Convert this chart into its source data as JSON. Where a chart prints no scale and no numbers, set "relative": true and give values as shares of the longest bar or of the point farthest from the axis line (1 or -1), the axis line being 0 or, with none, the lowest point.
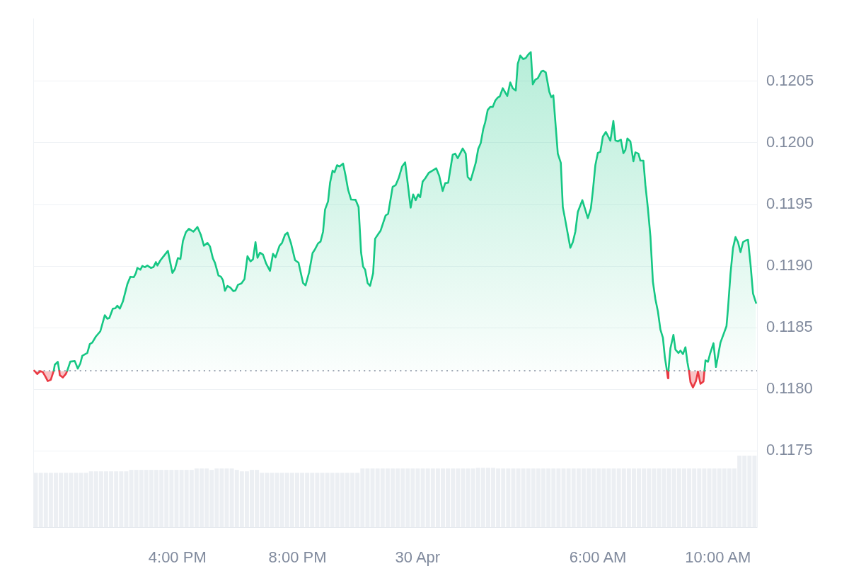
{
  "chart_data": [
    {
      "type": "area",
      "x": [
        "--04-29T11:14",
        "--04-29T11:20",
        "--04-29T11:26",
        "--04-29T11:31",
        "--04-29T11:36",
        "--04-29T11:41",
        "--04-29T11:47",
        "--04-29T11:53",
        "--04-29T11:55",
        "--04-29T12:01",
        "--04-29T12:04",
        "--04-29T12:05",
        "--04-29T12:11",
        "--04-29T12:17",
        "--04-29T12:20",
        "--04-29T12:26",
        "--04-29T12:35",
        "--04-29T12:41",
        "--04-29T12:46",
        "--04-29T12:50",
        "--04-29T13:00",
        "--04-29T13:05",
        "--04-29T13:10",
        "--04-29T13:17",
        "--04-29T13:26",
        "--04-29T13:35",
        "--04-29T13:40",
        "--04-29T13:44",
        "--04-29T13:51",
        "--04-29T13:56",
        "--04-29T14:00",
        "--04-29T14:05",
        "--04-29T14:11",
        "--04-29T14:20",
        "--04-29T14:26",
        "--04-29T14:33",
        "--04-29T14:37",
        "--04-29T14:40",
        "--04-29T14:46",
        "--04-29T14:50",
        "--04-29T14:55",
        "--04-29T15:00",
        "--04-29T15:07",
        "--04-29T15:12",
        "--04-29T15:17",
        "--04-29T15:20",
        "--04-29T15:26",
        "--04-29T15:35",
        "--04-29T15:41",
        "--04-29T15:50",
        "--04-29T15:55",
        "--04-29T16:01",
        "--04-29T16:06",
        "--04-29T16:11",
        "--04-29T16:17",
        "--04-29T16:23",
        "--04-29T16:32",
        "--04-29T16:40",
        "--04-29T16:47",
        "--04-29T16:53",
        "--04-29T17:00",
        "--04-29T17:05",
        "--04-29T17:11",
        "--04-29T17:15",
        "--04-29T17:22",
        "--04-29T17:27",
        "--04-29T17:31",
        "--04-29T17:35",
        "--04-29T17:40",
        "--04-29T17:46",
        "--04-29T17:52",
        "--04-29T17:56",
        "--04-29T18:01",
        "--04-29T18:08",
        "--04-29T18:14",
        "--04-29T18:20",
        "--04-29T18:26",
        "--04-29T18:31",
        "--04-29T18:36",
        "--04-29T18:40",
        "--04-29T18:45",
        "--04-29T18:51",
        "--04-29T18:57",
        "--04-29T19:05",
        "--04-29T19:11",
        "--04-29T19:16",
        "--04-29T19:24",
        "--04-29T19:29",
        "--04-29T19:35",
        "--04-29T19:40",
        "--04-29T19:47",
        "--04-29T19:55",
        "--04-29T20:02",
        "--04-29T20:11",
        "--04-29T20:16",
        "--04-29T20:23",
        "--04-29T20:30",
        "--04-29T20:35",
        "--04-29T20:41",
        "--04-29T20:46",
        "--04-29T20:51",
        "--04-29T20:55",
        "--04-29T21:01",
        "--04-29T21:05",
        "--04-29T21:10",
        "--04-29T21:14",
        "--04-29T21:19",
        "--04-29T21:24",
        "--04-29T21:31",
        "--04-29T21:36",
        "--04-29T21:41",
        "--04-29T21:47",
        "--04-29T21:56",
        "--04-29T22:02",
        "--04-29T22:07",
        "--04-29T22:11",
        "--04-29T22:15",
        "--04-29T22:20",
        "--04-29T22:25",
        "--04-29T22:31",
        "--04-29T22:35",
        "--04-29T22:42",
        "--04-29T22:46",
        "--04-29T22:56",
        "--04-29T23:01",
        "--04-29T23:10",
        "--04-29T23:16",
        "--04-29T23:22",
        "--04-29T23:29",
        "--04-29T23:35",
        "--04-29T23:46",
        "--04-29T23:51",
        "--04-29T23:56",
        "--04-30T00:01",
        "--04-30T00:05",
        "--04-30T00:10",
        "--04-30T00:15",
        "--04-30T00:22",
        "--04-30T00:32",
        "--04-30T00:37",
        "--04-30T00:43",
        "--04-30T00:50",
        "--04-30T00:55",
        "--04-30T01:01",
        "--04-30T01:10",
        "--04-30T01:15",
        "--04-30T01:20",
        "--04-30T01:30",
        "--04-30T01:36",
        "--04-30T01:40",
        "--04-30T01:46",
        "--04-30T01:56",
        "--04-30T02:01",
        "--04-30T02:06",
        "--04-30T02:11",
        "--04-30T02:15",
        "--04-30T02:20",
        "--04-30T02:25",
        "--04-30T02:30",
        "--04-30T02:35",
        "--04-30T02:40",
        "--04-30T02:44",
        "--04-30T02:50",
        "--04-30T02:59",
        "--04-30T03:05",
        "--04-30T03:10",
        "--04-30T03:16",
        "--04-30T03:20",
        "--04-30T03:25",
        "--04-30T03:31",
        "--04-30T03:36",
        "--04-30T03:41",
        "--04-30T03:46",
        "--04-30T03:50",
        "--04-30T03:55",
        "--04-30T04:00",
        "--04-30T04:07",
        "--04-30T04:11",
        "--04-30T04:16",
        "--04-30T04:23",
        "--04-30T04:27",
        "--04-30T04:31",
        "--04-30T04:40",
        "--04-30T04:46",
        "--04-30T04:50",
        "--04-30T04:54",
        "--04-30T05:05",
        "--04-30T05:10",
        "--04-30T05:15",
        "--04-30T05:20",
        "--04-30T05:29",
        "--04-30T05:40",
        "--04-30T05:46",
        "--04-30T05:50",
        "--04-30T05:55",
        "--04-30T06:00",
        "--04-30T06:05",
        "--04-30T06:10",
        "--04-30T06:16",
        "--04-30T06:25",
        "--04-30T06:31",
        "--04-30T06:35",
        "--04-30T06:40",
        "--04-30T06:46",
        "--04-30T06:51",
        "--04-30T06:55",
        "--04-30T06:59",
        "--04-30T07:05",
        "--04-30T07:11",
        "--04-30T07:15",
        "--04-30T07:21",
        "--04-30T07:25",
        "--04-30T07:31",
        "--04-30T07:35",
        "--04-30T07:40",
        "--04-30T07:45",
        "--04-30T07:50",
        "--04-30T07:55",
        "--04-30T08:00",
        "--04-30T08:05",
        "--04-30T08:10",
        "--04-30T08:14",
        "--04-30T08:18",
        "--04-30T08:20",
        "--04-30T08:21",
        "--04-30T08:25",
        "--04-30T08:31",
        "--04-30T08:35",
        "--04-30T08:41",
        "--04-30T08:45",
        "--04-30T08:50",
        "--04-30T08:55",
        "--04-30T08:59",
        "--04-30T09:02",
        "--04-30T09:05",
        "--04-30T09:10",
        "--04-30T09:16",
        "--04-30T09:20",
        "--04-30T09:25",
        "--04-30T09:31",
        "--04-30T09:33",
        "--04-30T09:35",
        "--04-30T09:40",
        "--04-30T09:44",
        "--04-30T09:51",
        "--04-30T09:56",
        "--04-30T10:05",
        "--04-30T10:11",
        "--04-30T10:17",
        "--04-30T10:20",
        "--04-30T10:25",
        "--04-30T10:30",
        "--04-30T10:35",
        "--04-30T10:40",
        "--04-30T10:45",
        "--04-30T10:50",
        "--04-30T10:55",
        "--04-30T11:00",
        "--04-30T11:05",
        "--04-30T11:10",
        "--04-30T11:16"
      ],
      "xlim": [
        "--04-29T11:12",
        "--04-30T11:18"
      ],
      "xticks": [
        {
          "value": "--04-29T16:00",
          "label": "4:00 PM"
        },
        {
          "value": "--04-29T20:00",
          "label": "8:00 PM"
        },
        {
          "value": "--04-30",
          "label": "30 Apr"
        },
        {
          "value": "--04-30T06:00",
          "label": "6:00 AM"
        },
        {
          "value": "--04-30T10:00",
          "label": "10:00 AM"
        }
      ],
      "ylim": [
        0.11688,
        0.12101
      ],
      "yticks": [
        0.1175,
        {
          "value": 0.118,
          "label": "0.1180"
        },
        0.1185,
        {
          "value": 0.119,
          "label": "0.1190"
        },
        0.1195,
        {
          "value": 0.12,
          "label": "0.1200"
        },
        0.1205
      ],
      "grid": "y",
      "ref_lines": [
        {
          "axis": "y",
          "value": 0.11815,
          "line_style": "dotted",
          "color": "#a0a6b5"
        }
      ],
      "series": [
        {
          "color": "#16c784",
          "values": [
            0.11815,
            0.118123,
            0.118147,
            0.118139,
            0.118105,
            0.118066,
            0.118076,
            0.11815,
            0.118199,
            0.118222,
            0.11815,
            0.118114,
            0.118095,
            0.118123,
            0.11815,
            0.118224,
            0.118228,
            0.118167,
            0.118209,
            0.118271,
            0.118294,
            0.118366,
            0.118379,
            0.118427,
            0.11847,
            0.118601,
            0.118572,
            0.118578,
            0.118654,
            0.118657,
            0.118678,
            0.118654,
            0.118711,
            0.118853,
            0.118913,
            0.11891,
            0.118942,
            0.118985,
            0.11897,
            0.119001,
            0.118991,
            0.119004,
            0.118985,
            0.118991,
            0.119032,
            0.119004,
            0.119046,
            0.119093,
            0.119123,
            0.118944,
            0.118976,
            0.119065,
            0.119057,
            0.119203,
            0.119275,
            0.119303,
            0.119279,
            0.119317,
            0.119251,
            0.119165,
            0.119188,
            0.11916,
            0.119061,
            0.119027,
            0.118923,
            0.118913,
            0.118885,
            0.118799,
            0.118839,
            0.118824,
            0.118796,
            0.118802,
            0.118847,
            0.118859,
            0.118894,
            0.11908,
            0.119038,
            0.119055,
            0.119194,
            0.119067,
            0.119109,
            0.119093,
            0.119023,
            0.118961,
            0.119099,
            0.11907,
            0.119165,
            0.119188,
            0.119254,
            0.119271,
            0.119184,
            0.119048,
            0.119027,
            0.118862,
            0.118843,
            0.118947,
            0.119105,
            0.119137,
            0.119184,
            0.119199,
            0.119279,
            0.119459,
            0.119525,
            0.119677,
            0.119775,
            0.119762,
            0.119819,
            0.119809,
            0.119832,
            0.119734,
            0.11962,
            0.11954,
            0.119538,
            0.119478,
            0.119109,
            0.118995,
            0.118972,
            0.118862,
            0.118839,
            0.118942,
            0.119222,
            0.119264,
            0.119288,
            0.119411,
            0.119424,
            0.119643,
            0.119657,
            0.119714,
            0.119809,
            0.119842,
            0.119474,
            0.119582,
            0.119535,
            0.119582,
            0.119559,
            0.119686,
            0.119711,
            0.119756,
            0.119781,
            0.119794,
            0.119734,
            0.11961,
            0.119673,
            0.119677,
            0.119904,
            0.119913,
            0.119876,
            0.119955,
            0.119913,
            0.119724,
            0.119696,
            0.119838,
            0.119951,
            0.119998,
            0.120112,
            0.120169,
            0.120268,
            0.120292,
            0.120292,
            0.120343,
            0.120368,
            0.120377,
            0.120444,
            0.120381,
            0.120491,
            0.120444,
            0.120425,
            0.120643,
            0.120709,
            0.12068,
            0.12069,
            0.120718,
            0.120737,
            0.120476,
            0.120514,
            0.120525,
            0.12058,
            0.120586,
            0.120572,
            0.120415,
            0.120372,
            0.120387,
            0.119913,
            0.119838,
            0.119478,
            0.119393,
            0.119148,
            0.119194,
            0.119279,
            0.11944,
            0.119535,
            0.119389,
            0.119468,
            0.11961,
            0.119819,
            0.119919,
            0.119928,
            0.120052,
            0.120089,
            0.120018,
            0.120178,
            0.120021,
            0.120012,
            0.120027,
            0.119917,
            0.119942,
            0.120036,
            0.120012,
            0.119851,
            0.119923,
            0.119913,
            0.119856,
            0.119856,
            0.119657,
            0.119468,
            0.119241,
            0.118872,
            0.11873,
            0.118631,
            0.118484,
            0.118417,
            0.118256,
            0.11815,
            0.118089,
            0.11815,
            0.118332,
            0.118441,
            0.118322,
            0.118294,
            0.118313,
            0.118285,
            0.118341,
            0.118218,
            0.11815,
            0.118057,
            0.118014,
            0.118066,
            0.118143,
            0.118044,
            0.118063,
            0.11815,
            0.118234,
            0.118222,
            0.118285,
            0.118373,
            0.11818,
            0.118379,
            0.118445,
            0.118512,
            0.118654,
            0.118938,
            0.119146,
            0.119235,
            0.119194,
            0.119112,
            0.119194,
            0.119207,
            0.119213,
            0.119014,
            0.118777,
            0.118701
          ],
          "colors": [
            "#ea3943",
            "#ea3943",
            "#ea3943",
            "#ea3943",
            "#ea3943",
            "#ea3943",
            "#ea3943",
            "#16c784",
            "#16c784",
            "#16c784",
            "#16c784",
            "#ea3943",
            "#ea3943",
            "#ea3943",
            "#16c784",
            "#16c784",
            "#16c784",
            "#16c784",
            "#16c784",
            "#16c784",
            "#16c784",
            "#16c784",
            "#16c784",
            "#16c784",
            "#16c784",
            "#16c784",
            "#16c784",
            "#16c784",
            "#16c784",
            "#16c784",
            "#16c784",
            "#16c784",
            "#16c784",
            "#16c784",
            "#16c784",
            "#16c784",
            "#16c784",
            "#16c784",
            "#16c784",
            "#16c784",
            "#16c784",
            "#16c784",
            "#16c784",
            "#16c784",
            "#16c784",
            "#16c784",
            "#16c784",
            "#16c784",
            "#16c784",
            "#16c784",
            "#16c784",
            "#16c784",
            "#16c784",
            "#16c784",
            "#16c784",
            "#16c784",
            "#16c784",
            "#16c784",
            "#16c784",
            "#16c784",
            "#16c784",
            "#16c784",
            "#16c784",
            "#16c784",
            "#16c784",
            "#16c784",
            "#16c784",
            "#16c784",
            "#16c784",
            "#16c784",
            "#16c784",
            "#16c784",
            "#16c784",
            "#16c784",
            "#16c784",
            "#16c784",
            "#16c784",
            "#16c784",
            "#16c784",
            "#16c784",
            "#16c784",
            "#16c784",
            "#16c784",
            "#16c784",
            "#16c784",
            "#16c784",
            "#16c784",
            "#16c784",
            "#16c784",
            "#16c784",
            "#16c784",
            "#16c784",
            "#16c784",
            "#16c784",
            "#16c784",
            "#16c784",
            "#16c784",
            "#16c784",
            "#16c784",
            "#16c784",
            "#16c784",
            "#16c784",
            "#16c784",
            "#16c784",
            "#16c784",
            "#16c784",
            "#16c784",
            "#16c784",
            "#16c784",
            "#16c784",
            "#16c784",
            "#16c784",
            "#16c784",
            "#16c784",
            "#16c784",
            "#16c784",
            "#16c784",
            "#16c784",
            "#16c784",
            "#16c784",
            "#16c784",
            "#16c784",
            "#16c784",
            "#16c784",
            "#16c784",
            "#16c784",
            "#16c784",
            "#16c784",
            "#16c784",
            "#16c784",
            "#16c784",
            "#16c784",
            "#16c784",
            "#16c784",
            "#16c784",
            "#16c784",
            "#16c784",
            "#16c784",
            "#16c784",
            "#16c784",
            "#16c784",
            "#16c784",
            "#16c784",
            "#16c784",
            "#16c784",
            "#16c784",
            "#16c784",
            "#16c784",
            "#16c784",
            "#16c784",
            "#16c784",
            "#16c784",
            "#16c784",
            "#16c784",
            "#16c784",
            "#16c784",
            "#16c784",
            "#16c784",
            "#16c784",
            "#16c784",
            "#16c784",
            "#16c784",
            "#16c784",
            "#16c784",
            "#16c784",
            "#16c784",
            "#16c784",
            "#16c784",
            "#16c784",
            "#16c784",
            "#16c784",
            "#16c784",
            "#16c784",
            "#16c784",
            "#16c784",
            "#16c784",
            "#16c784",
            "#16c784",
            "#16c784",
            "#16c784",
            "#16c784",
            "#16c784",
            "#16c784",
            "#16c784",
            "#16c784",
            "#16c784",
            "#16c784",
            "#16c784",
            "#16c784",
            "#16c784",
            "#16c784",
            "#16c784",
            "#16c784",
            "#16c784",
            "#16c784",
            "#16c784",
            "#16c784",
            "#16c784",
            "#16c784",
            "#16c784",
            "#16c784",
            "#16c784",
            "#16c784",
            "#16c784",
            "#16c784",
            "#16c784",
            "#16c784",
            "#16c784",
            "#16c784",
            "#16c784",
            "#16c784",
            "#16c784",
            "#16c784",
            "#16c784",
            "#16c784",
            "#16c784",
            "#16c784",
            "#16c784",
            "#16c784",
            "#16c784",
            "#16c784",
            "#16c784",
            "#16c784",
            "#ea3943",
            "#16c784",
            "#16c784",
            "#16c784",
            "#16c784",
            "#16c784",
            "#16c784",
            "#16c784",
            "#16c784",
            "#16c784",
            "#16c784",
            "#ea3943",
            "#ea3943",
            "#ea3943",
            "#ea3943",
            "#ea3943",
            "#ea3943",
            "#16c784",
            "#16c784",
            "#16c784",
            "#16c784",
            "#16c784",
            "#16c784",
            "#16c784",
            "#16c784",
            "#16c784",
            "#16c784",
            "#16c784",
            "#16c784",
            "#16c784",
            "#16c784",
            "#16c784",
            "#16c784",
            "#16c784",
            "#16c784",
            "#16c784",
            "#16c784",
            "#16c784"
          ]
        }
      ]
    },
    {
      "type": "bar",
      "relative": true,
      "color": "#eceff3",
      "categories": [
        null,
        null,
        null,
        null,
        null,
        null,
        null,
        null,
        null,
        null,
        null,
        null,
        null,
        null,
        null,
        null,
        null,
        null,
        null,
        null,
        null,
        null,
        null,
        null,
        null,
        null,
        null,
        null,
        null,
        null,
        null,
        null,
        null,
        null,
        null,
        null,
        null,
        null,
        null,
        null,
        null,
        null,
        null,
        null,
        null,
        null,
        null,
        null,
        null,
        null,
        null,
        null,
        null,
        null,
        null,
        null,
        null,
        null,
        null,
        null,
        null,
        null,
        null,
        null,
        null,
        null,
        null,
        null,
        null,
        null,
        null,
        null,
        null,
        null,
        null,
        null,
        null,
        null,
        null,
        null,
        null,
        null,
        null,
        null,
        null,
        null,
        null,
        null,
        null,
        null,
        null,
        null,
        null,
        null,
        null,
        null,
        null,
        null,
        null,
        null,
        null,
        null,
        null,
        null,
        null,
        null,
        null,
        null,
        null,
        null,
        null,
        null,
        null,
        null,
        null,
        null,
        null,
        null,
        null,
        null,
        null,
        null,
        null,
        null,
        null,
        null,
        null,
        null,
        null,
        null,
        null,
        null,
        null,
        null,
        null,
        null,
        null,
        null,
        null,
        null,
        null,
        null,
        null,
        null
      ],
      "values": [
        0.76,
        0.76,
        0.76,
        0.76,
        0.76,
        0.76,
        0.76,
        0.76,
        0.76,
        0.76,
        0.76,
        0.78,
        0.78,
        0.78,
        0.78,
        0.78,
        0.78,
        0.78,
        0.78,
        0.8,
        0.8,
        0.8,
        0.8,
        0.8,
        0.8,
        0.8,
        0.8,
        0.8,
        0.8,
        0.8,
        0.8,
        0.8,
        0.82,
        0.82,
        0.82,
        0.8,
        0.82,
        0.82,
        0.82,
        0.82,
        0.8,
        0.78,
        0.78,
        0.8,
        0.8,
        0.76,
        0.76,
        0.76,
        0.76,
        0.76,
        0.76,
        0.76,
        0.76,
        0.76,
        0.76,
        0.76,
        0.76,
        0.76,
        0.76,
        0.76,
        0.76,
        0.76,
        0.76,
        0.76,
        0.76,
        0.82,
        0.82,
        0.82,
        0.82,
        0.82,
        0.82,
        0.82,
        0.82,
        0.82,
        0.82,
        0.82,
        0.82,
        0.82,
        0.82,
        0.82,
        0.82,
        0.82,
        0.82,
        0.82,
        0.82,
        0.82,
        0.82,
        0.82,
        0.83,
        0.83,
        0.83,
        0.83,
        0.82,
        0.82,
        0.82,
        0.82,
        0.82,
        0.82,
        0.82,
        0.82,
        0.82,
        0.82,
        0.82,
        0.82,
        0.82,
        0.82,
        0.82,
        0.82,
        0.82,
        0.82,
        0.82,
        0.82,
        0.82,
        0.82,
        0.82,
        0.82,
        0.82,
        0.82,
        0.82,
        0.82,
        0.82,
        0.82,
        0.82,
        0.82,
        0.82,
        0.82,
        0.82,
        0.82,
        0.82,
        0.82,
        0.82,
        0.82,
        0.82,
        0.82,
        0.82,
        0.82,
        0.82,
        0.82,
        0.82,
        0.82,
        1,
        1,
        1,
        1
      ]
    }
  ]
}
